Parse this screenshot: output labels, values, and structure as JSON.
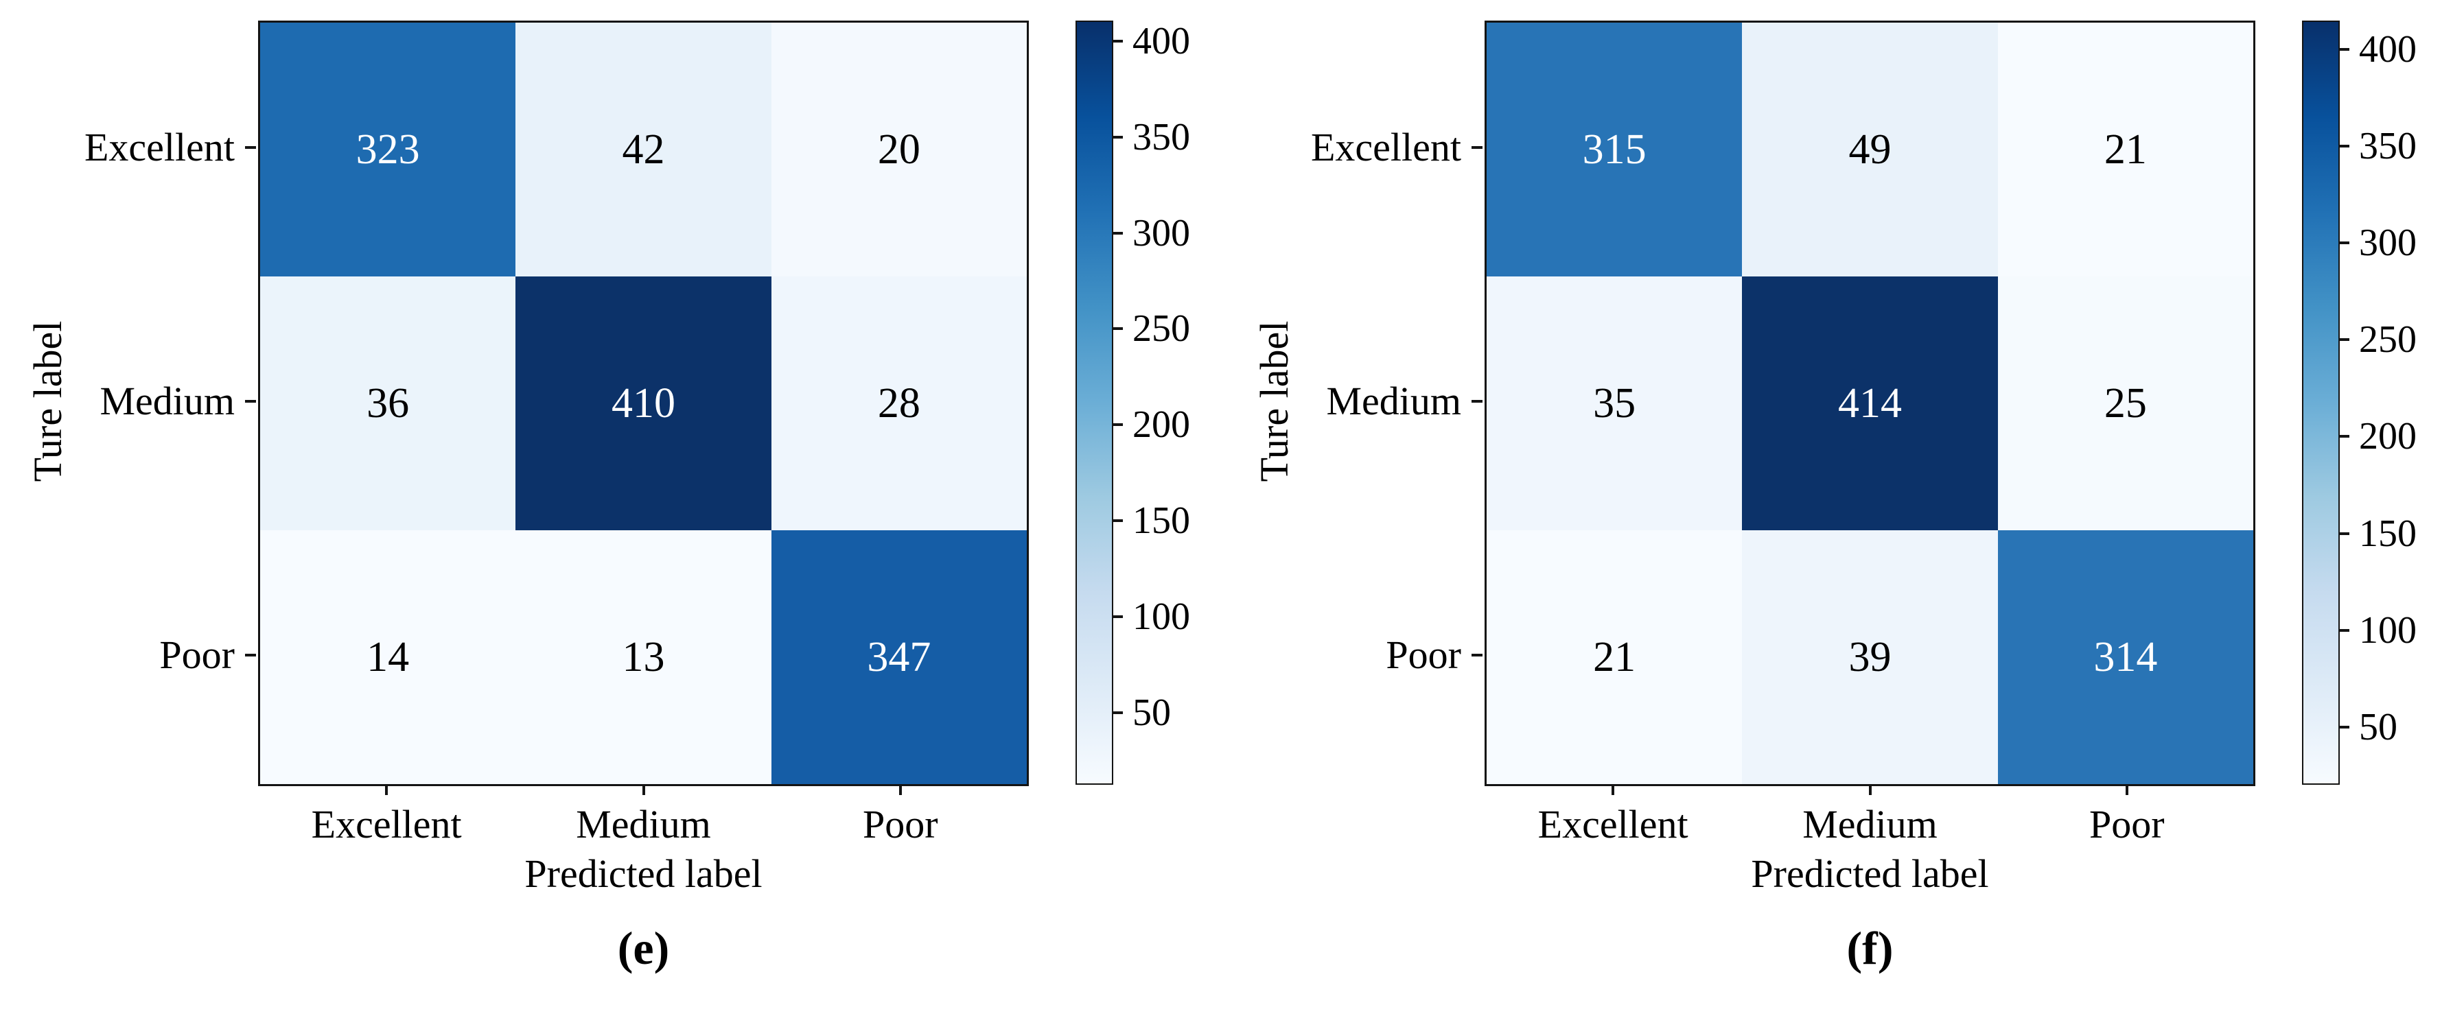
{
  "style": {
    "background": "#ffffff",
    "axis_color": "#141414",
    "text_color": "#000000",
    "cell_text_dark": "#000000",
    "cell_text_light": "#ffffff",
    "colormap_name": "Blues",
    "colormap_stops": [
      "#f7fbff",
      "#deebf7",
      "#c6dbef",
      "#9ecae1",
      "#6baed6",
      "#4292c6",
      "#2171b5",
      "#08519c",
      "#08306b"
    ]
  },
  "chart_data": [
    {
      "type": "heatmap",
      "subtype": "confusion-matrix",
      "caption": "(e)",
      "xlabel": "Predicted label",
      "ylabel": "Ture label",
      "categories": [
        "Excellent",
        "Medium",
        "Poor"
      ],
      "x_tick_labels": [
        "Excellent",
        "Medium",
        "Poor"
      ],
      "y_tick_labels": [
        "Excellent",
        "Medium",
        "Poor"
      ],
      "rows": [
        [
          323,
          42,
          20
        ],
        [
          36,
          410,
          28
        ],
        [
          14,
          13,
          347
        ]
      ],
      "cell_colors": [
        [
          "#1e6bb0",
          "#e8f2fa",
          "#f4f9fe"
        ],
        [
          "#ebf4fb",
          "#0c3269",
          "#eff6fd"
        ],
        [
          "#f7fbff",
          "#f7fbff",
          "#155da6"
        ]
      ],
      "colorbar": {
        "vmin": 13,
        "vmax": 410,
        "ticks": [
          400,
          350,
          300,
          250,
          200,
          150,
          100,
          50
        ]
      },
      "grid": "off",
      "legend": "none"
    },
    {
      "type": "heatmap",
      "subtype": "confusion-matrix",
      "caption": "(f)",
      "xlabel": "Predicted label",
      "ylabel": "Ture label",
      "categories": [
        "Excellent",
        "Medium",
        "Poor"
      ],
      "x_tick_labels": [
        "Excellent",
        "Medium",
        "Poor"
      ],
      "y_tick_labels": [
        "Excellent",
        "Medium",
        "Poor"
      ],
      "rows": [
        [
          315,
          49,
          21
        ],
        [
          35,
          414,
          25
        ],
        [
          21,
          39,
          314
        ]
      ],
      "cell_colors": [
        [
          "#2874b6",
          "#e9f2fa",
          "#f7fbff"
        ],
        [
          "#f0f6fd",
          "#0c3269",
          "#f5fafe"
        ],
        [
          "#f7fbff",
          "#eef5fc",
          "#2974b5"
        ]
      ],
      "colorbar": {
        "vmin": 21,
        "vmax": 414,
        "ticks": [
          400,
          350,
          300,
          250,
          200,
          150,
          100,
          50
        ]
      },
      "grid": "off",
      "legend": "none"
    }
  ]
}
